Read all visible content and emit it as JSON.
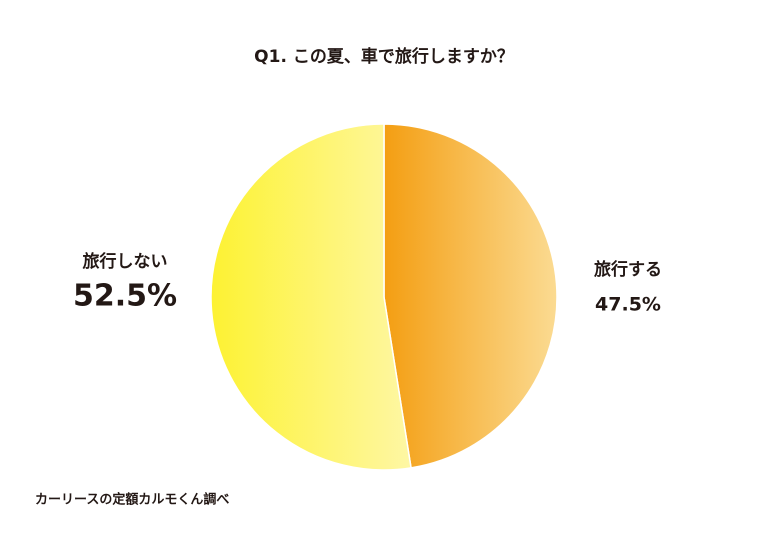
{
  "chart_data": {
    "type": "pie",
    "title": "Q1. この夏、車で旅行しますか？",
    "categories": [
      "旅行する",
      "旅行しない"
    ],
    "values": [
      47.5,
      52.5
    ],
    "value_labels": [
      "47.5%",
      "52.5%"
    ],
    "colors": [
      [
        "#f49e12",
        "#fbdb92"
      ],
      [
        "#fdf232",
        "#fef7a4"
      ]
    ],
    "source": "カーリースの定額カルモくん調べ"
  }
}
